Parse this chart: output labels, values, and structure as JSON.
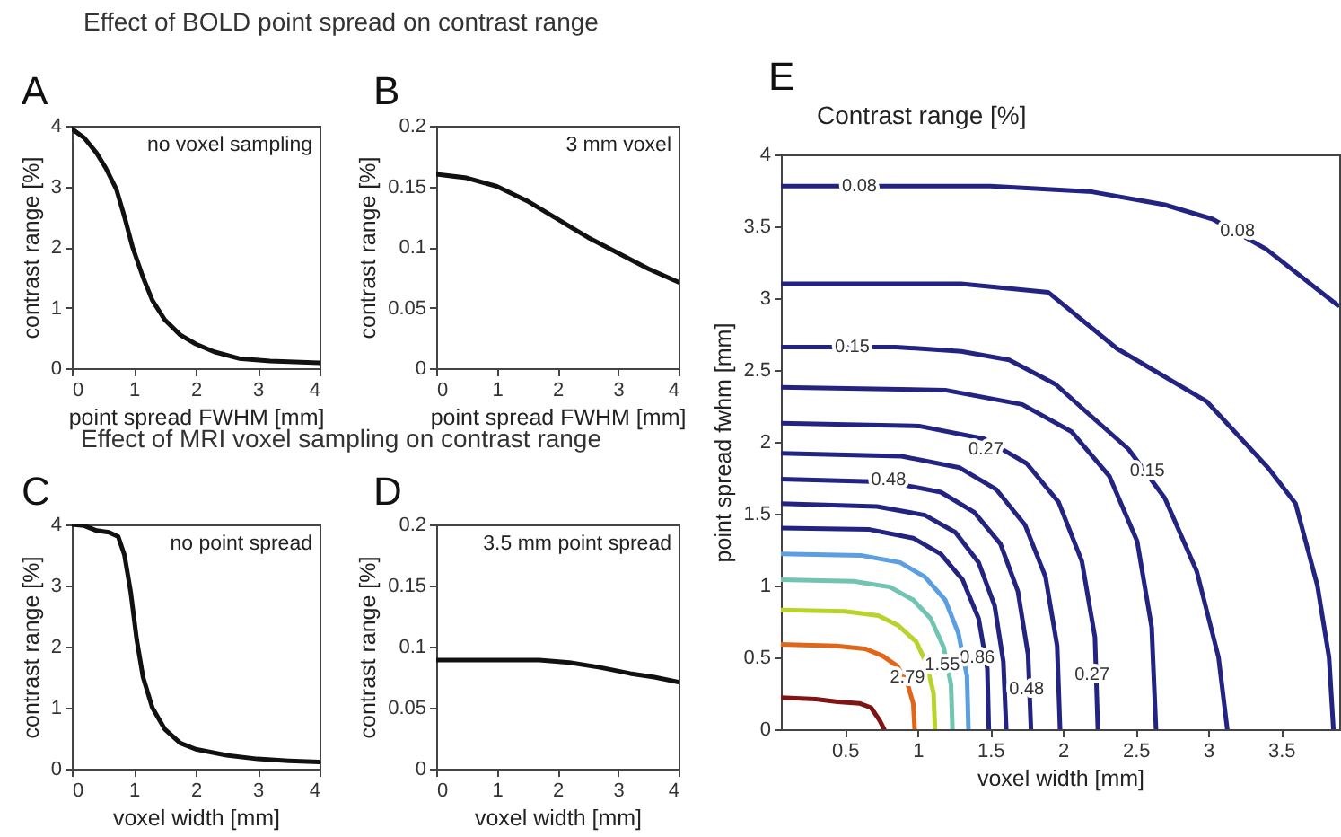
{
  "chart_data": [
    {
      "type": "line",
      "title": "Effect of BOLD point spread on contrast range",
      "xlabel": "point spread FWHM [mm]",
      "ylabel": "contrast range [%]",
      "annotations": [
        "A",
        "no voxel sampling"
      ],
      "xlim": [
        0,
        4
      ],
      "xticks": [
        0,
        1,
        2,
        3,
        4
      ],
      "ylim": [
        0,
        4
      ],
      "yticks": [
        0,
        1,
        2,
        3,
        4
      ],
      "series": [
        {
          "color": "#111111",
          "x": [
            0,
            0.2,
            0.4,
            0.55,
            0.72,
            0.85,
            0.98,
            1.15,
            1.3,
            1.5,
            1.75,
            2.0,
            2.3,
            2.7,
            3.2,
            4.0
          ],
          "values": [
            3.95,
            3.8,
            3.55,
            3.3,
            2.95,
            2.5,
            2.0,
            1.5,
            1.12,
            0.8,
            0.55,
            0.4,
            0.27,
            0.16,
            0.12,
            0.09
          ]
        }
      ]
    },
    {
      "type": "line",
      "xlabel": "point spread FWHM [mm]",
      "ylabel": "contrast range [%]",
      "annotations": [
        "B",
        "3 mm voxel"
      ],
      "xlim": [
        0,
        4
      ],
      "xticks": [
        0,
        1,
        2,
        3,
        4
      ],
      "ylim": [
        0,
        0.2
      ],
      "yticks": [
        0,
        0.05,
        0.1,
        0.15,
        0.2
      ],
      "series": [
        {
          "color": "#111111",
          "x": [
            0,
            0.5,
            1,
            1.5,
            2,
            2.5,
            3,
            3.5,
            4
          ],
          "values": [
            0.16,
            0.157,
            0.15,
            0.138,
            0.123,
            0.108,
            0.095,
            0.082,
            0.071
          ]
        }
      ]
    },
    {
      "type": "line",
      "title": "Effect of MRI voxel sampling on contrast range",
      "xlabel": "voxel width [mm]",
      "ylabel": "contrast range [%]",
      "annotations": [
        "C",
        "no point spread"
      ],
      "xlim": [
        0,
        4
      ],
      "xticks": [
        0,
        1,
        2,
        3,
        4
      ],
      "ylim": [
        0,
        4
      ],
      "yticks": [
        0,
        1,
        2,
        3,
        4
      ],
      "series": [
        {
          "color": "#111111",
          "x": [
            0,
            0.2,
            0.4,
            0.6,
            0.75,
            0.85,
            0.95,
            1.05,
            1.15,
            1.3,
            1.5,
            1.75,
            2.0,
            2.5,
            3.0,
            3.5,
            4.0
          ],
          "values": [
            4.0,
            3.98,
            3.9,
            3.87,
            3.8,
            3.5,
            2.9,
            2.1,
            1.5,
            1.0,
            0.65,
            0.42,
            0.32,
            0.22,
            0.16,
            0.13,
            0.11
          ]
        }
      ]
    },
    {
      "type": "line",
      "xlabel": "voxel width [mm]",
      "ylabel": "contrast range [%]",
      "annotations": [
        "D",
        "3.5 mm point spread"
      ],
      "xlim": [
        0,
        4
      ],
      "xticks": [
        0,
        1,
        2,
        3,
        4
      ],
      "ylim": [
        0,
        0.2
      ],
      "yticks": [
        0,
        0.05,
        0.1,
        0.15,
        0.2
      ],
      "series": [
        {
          "color": "#111111",
          "x": [
            0,
            1,
            1.7,
            2.2,
            2.7,
            3.2,
            3.6,
            4
          ],
          "values": [
            0.089,
            0.089,
            0.089,
            0.087,
            0.083,
            0.078,
            0.075,
            0.071
          ]
        }
      ]
    },
    {
      "type": "line",
      "title": "Contrast range [%]",
      "xlabel": "voxel width [mm]",
      "ylabel": "point spread fwhm [mm]",
      "xlim": [
        0.06,
        3.9
      ],
      "xticks": [
        0.5,
        1,
        1.5,
        2,
        2.5,
        3,
        3.5
      ],
      "ylim": [
        0,
        4
      ],
      "yticks": [
        0,
        0.5,
        1,
        1.5,
        2,
        2.5,
        3,
        3.5,
        4
      ],
      "annotations": [
        "E",
        {
          "text": "0.08",
          "x": 0.6,
          "y": 3.78
        },
        {
          "text": "0.08",
          "x": 3.2,
          "y": 3.47
        },
        {
          "text": "0.15",
          "x": 0.55,
          "y": 2.66
        },
        {
          "text": "0.15",
          "x": 2.58,
          "y": 1.8
        },
        {
          "text": "0.27",
          "x": 1.47,
          "y": 1.95
        },
        {
          "text": "0.27",
          "x": 2.2,
          "y": 0.38
        },
        {
          "text": "0.48",
          "x": 0.8,
          "y": 1.74
        },
        {
          "text": "0.48",
          "x": 1.75,
          "y": 0.28
        },
        {
          "text": "0.86",
          "x": 1.41,
          "y": 0.5
        },
        {
          "text": "1.55",
          "x": 1.17,
          "y": 0.45
        },
        {
          "text": "2.79",
          "x": 0.93,
          "y": 0.36
        }
      ],
      "series": [
        {
          "color": "#7f1414",
          "x": [
            0.06,
            0.3,
            0.45,
            0.6,
            0.68,
            0.74,
            0.77
          ],
          "values": [
            0.22,
            0.21,
            0.19,
            0.18,
            0.15,
            0.06,
            0
          ]
        },
        {
          "color": "#e0661a",
          "x": [
            0.06,
            0.44,
            0.64,
            0.76,
            0.86,
            0.93,
            0.97,
            0.98
          ],
          "values": [
            0.59,
            0.58,
            0.56,
            0.51,
            0.44,
            0.32,
            0.18,
            0
          ]
        },
        {
          "color": "#b8d42c",
          "x": [
            0.06,
            0.5,
            0.73,
            0.87,
            0.99,
            1.06,
            1.11,
            1.12
          ],
          "values": [
            0.83,
            0.82,
            0.79,
            0.72,
            0.61,
            0.46,
            0.25,
            0
          ]
        },
        {
          "color": "#72c4b2",
          "x": [
            0.06,
            0.56,
            0.81,
            0.97,
            1.09,
            1.18,
            1.23,
            1.24
          ],
          "values": [
            1.04,
            1.03,
            0.99,
            0.9,
            0.77,
            0.57,
            0.31,
            0
          ]
        },
        {
          "color": "#5c9fe0",
          "x": [
            0.06,
            0.61,
            0.88,
            1.05,
            1.19,
            1.28,
            1.34,
            1.35
          ],
          "values": [
            1.22,
            1.21,
            1.16,
            1.06,
            0.9,
            0.67,
            0.37,
            0
          ]
        },
        {
          "color": "#232382",
          "x": [
            0.06,
            0.67,
            0.97,
            1.16,
            1.31,
            1.42,
            1.48,
            1.49
          ],
          "values": [
            1.4,
            1.39,
            1.33,
            1.22,
            1.04,
            0.77,
            0.42,
            0
          ]
        },
        {
          "color": "#232382",
          "x": [
            0.06,
            0.72,
            1.05,
            1.26,
            1.42,
            1.53,
            1.59,
            1.61
          ],
          "values": [
            1.57,
            1.55,
            1.49,
            1.37,
            1.16,
            0.86,
            0.47,
            0
          ]
        },
        {
          "color": "#232382",
          "x": [
            0.06,
            0.8,
            1.16,
            1.39,
            1.57,
            1.69,
            1.76,
            1.78
          ],
          "values": [
            1.74,
            1.72,
            1.65,
            1.51,
            1.29,
            0.96,
            0.52,
            0
          ]
        },
        {
          "color": "#232382",
          "x": [
            0.06,
            0.89,
            1.29,
            1.54,
            1.74,
            1.88,
            1.96,
            1.98
          ],
          "values": [
            1.92,
            1.9,
            1.82,
            1.67,
            1.42,
            1.06,
            0.58,
            0
          ]
        },
        {
          "color": "#232382",
          "x": [
            0.06,
            1.01,
            1.46,
            1.75,
            1.97,
            2.13,
            2.22,
            2.24
          ],
          "values": [
            2.13,
            2.11,
            2.02,
            1.85,
            1.58,
            1.17,
            0.64,
            0
          ]
        },
        {
          "color": "#232382",
          "x": [
            0.06,
            1.19,
            1.72,
            2.06,
            2.32,
            2.51,
            2.61,
            2.64
          ],
          "values": [
            2.38,
            2.36,
            2.26,
            2.07,
            1.76,
            1.31,
            0.71,
            0
          ]
        },
        {
          "color": "#232382",
          "x": [
            0.06,
            0.85,
            1.3,
            1.63,
            1.95,
            2.17,
            2.45,
            2.7,
            2.92,
            3.07,
            3.13
          ],
          "values": [
            2.66,
            2.66,
            2.63,
            2.57,
            2.4,
            2.2,
            1.95,
            1.61,
            1.1,
            0.5,
            0
          ]
        },
        {
          "color": "#232382",
          "x": [
            0.06,
            1.3,
            1.9,
            2.37,
            2.99,
            3.41,
            3.6,
            3.75,
            3.83,
            3.86
          ],
          "values": [
            3.1,
            3.1,
            3.04,
            2.65,
            2.28,
            1.82,
            1.57,
            1.0,
            0.5,
            0
          ]
        },
        {
          "color": "#232382",
          "x": [
            0.06,
            1.5,
            2.2,
            2.7,
            3.03,
            3.4,
            3.89
          ],
          "values": [
            3.78,
            3.78,
            3.74,
            3.65,
            3.55,
            3.34,
            2.95
          ]
        }
      ]
    }
  ]
}
